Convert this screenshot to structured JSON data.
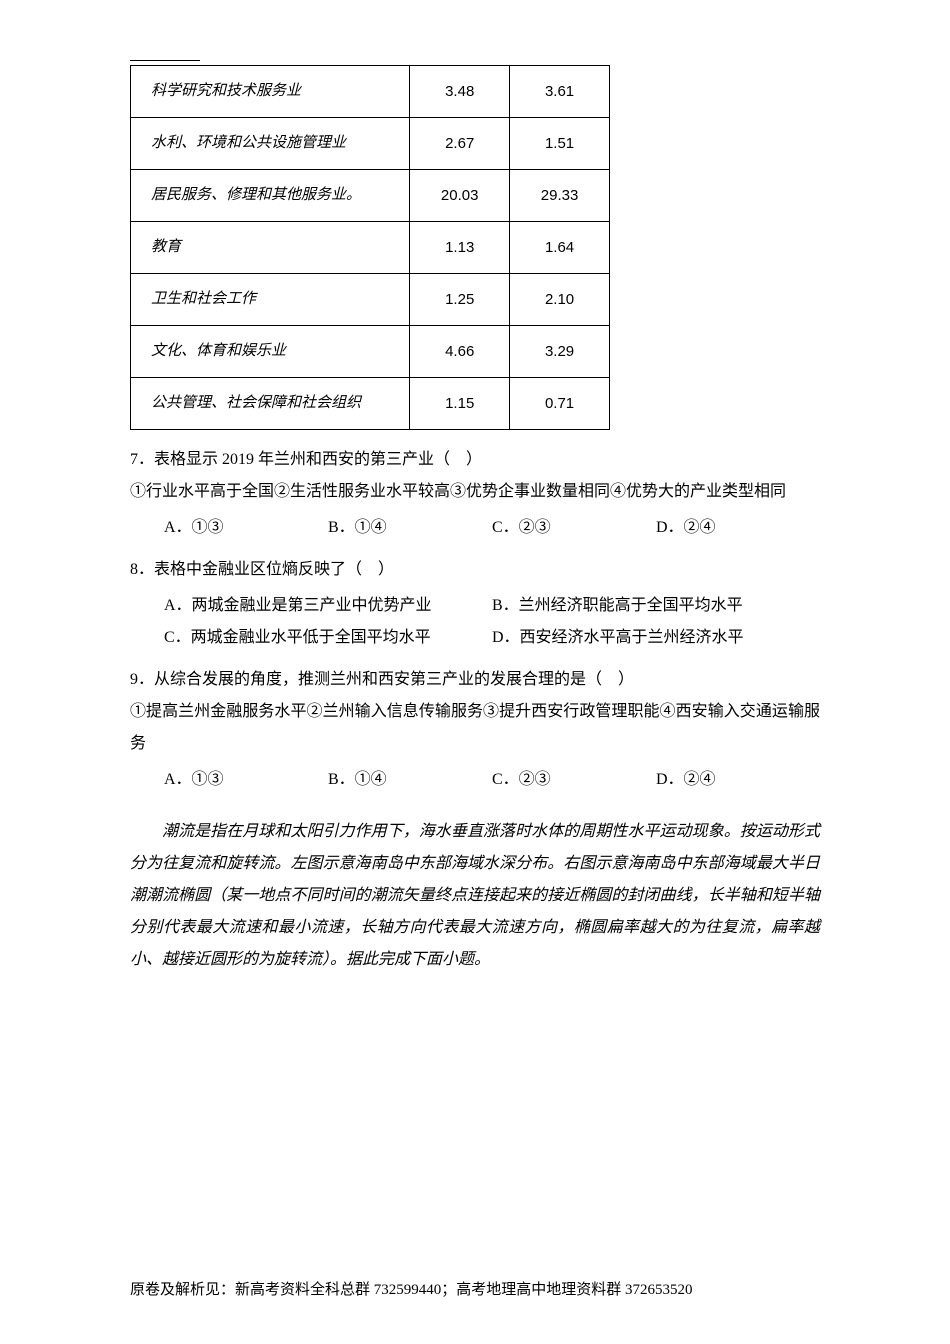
{
  "table": {
    "rows": [
      {
        "label": "科学研究和技术服务业",
        "v1": "3.48",
        "v2": "3.61"
      },
      {
        "label": "水利、环境和公共设施管理业",
        "v1": "2.67",
        "v2": "1.51"
      },
      {
        "label": "居民服务、修理和其他服务业。",
        "v1": "20.03",
        "v2": "29.33"
      },
      {
        "label": "教育",
        "v1": "1.13",
        "v2": "1.64"
      },
      {
        "label": "卫生和社会工作",
        "v1": "1.25",
        "v2": "2.10"
      },
      {
        "label": "文化、体育和娱乐业",
        "v1": "4.66",
        "v2": "3.29"
      },
      {
        "label": "公共管理、社会保障和社会组织",
        "v1": "1.15",
        "v2": "0.71"
      }
    ]
  },
  "q7": {
    "stem": "7．表格显示 2019 年兰州和西安的第三产业（　）",
    "sub": "①行业水平高于全国②生活性服务业水平较高③优势企事业数量相同④优势大的产业类型相同",
    "a": "A．①③",
    "b": "B．①④",
    "c": "C．②③",
    "d": "D．②④"
  },
  "q8": {
    "stem": "8．表格中金融业区位熵反映了（　）",
    "a": "A．两城金融业是第三产业中优势产业",
    "b": "B．兰州经济职能高于全国平均水平",
    "c": "C．两城金融业水平低于全国平均水平",
    "d": "D．西安经济水平高于兰州经济水平"
  },
  "q9": {
    "stem": "9．从综合发展的角度，推测兰州和西安第三产业的发展合理的是（　）",
    "sub": "①提高兰州金融服务水平②兰州输入信息传输服务③提升西安行政管理职能④西安输入交通运输服务",
    "a": "A．①③",
    "b": "B．①④",
    "c": "C．②③",
    "d": "D．②④"
  },
  "passage": "潮流是指在月球和太阳引力作用下，海水垂直涨落时水体的周期性水平运动现象。按运动形式分为往复流和旋转流。左图示意海南岛中东部海域水深分布。右图示意海南岛中东部海域最大半日潮潮流椭圆（某一地点不同时间的潮流矢量终点连接起来的接近椭圆的封闭曲线，长半轴和短半轴分别代表最大流速和最小流速，长轴方向代表最大流速方向，椭圆扁率越大的为往复流，扁率越小、越接近圆形的为旋转流）。据此完成下面小题。",
  "footer": "原卷及解析见：新高考资料全科总群 732599440；高考地理高中地理资料群 372653520"
}
